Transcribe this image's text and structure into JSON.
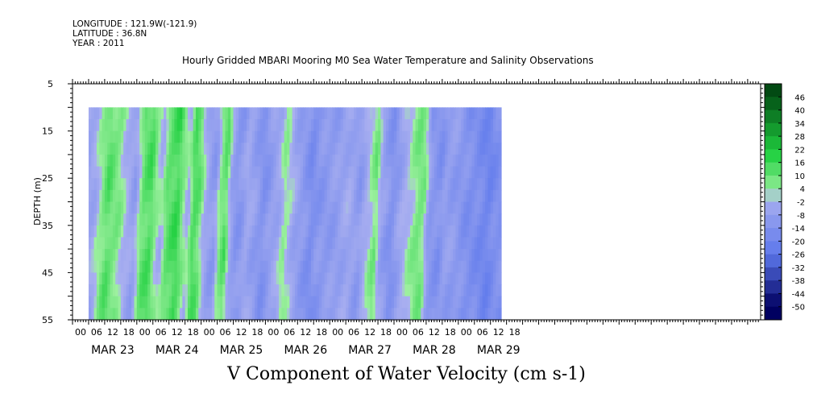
{
  "header": {
    "longitude": "LONGITUDE : 121.9W(-121.9)",
    "latitude": "LATITUDE : 36.8N",
    "year": "YEAR : 2011"
  },
  "chart_data": {
    "type": "heatmap",
    "title": "Hourly Gridded MBARI Mooring M0 Sea Water Temperature and Salinity Observations",
    "xlabel": "V Component of Water Velocity (cm s-1)",
    "ylabel": "DEPTH (m)",
    "ylim": [
      5,
      55
    ],
    "y_ticks": [
      5,
      15,
      25,
      35,
      45,
      55
    ],
    "x_hour_ticks": [
      "00",
      "06",
      "12",
      "18",
      "00",
      "06",
      "12",
      "18",
      "00",
      "06",
      "12",
      "18",
      "00",
      "06",
      "12",
      "18",
      "00",
      "06",
      "12",
      "18",
      "00",
      "06",
      "12",
      "18",
      "00",
      "06",
      "12",
      "18"
    ],
    "x_day_labels": [
      "MAR 23",
      "MAR 24",
      "MAR 25",
      "MAR 26",
      "MAR 27",
      "MAR 28",
      "MAR 29"
    ],
    "data_time_range_hours": [
      6,
      160
    ],
    "data_depth_range_m": [
      10,
      55
    ],
    "colorbar": {
      "levels": [
        46,
        40,
        34,
        28,
        22,
        16,
        10,
        4,
        -2,
        -8,
        -14,
        -20,
        -26,
        -32,
        -38,
        -44,
        -50
      ],
      "max": 50,
      "min": -50
    },
    "value_profile": {
      "time_hours": [
        6,
        9,
        12,
        14,
        16,
        18,
        20,
        24,
        27,
        30,
        32,
        34,
        36,
        40,
        42,
        44,
        46,
        48,
        50,
        52,
        54,
        56,
        58,
        60,
        62,
        64,
        66,
        70,
        72,
        75,
        78,
        80,
        84,
        88,
        90,
        92,
        96,
        100,
        104,
        108,
        112,
        114,
        116,
        120,
        124,
        128,
        130,
        132,
        134,
        138,
        140,
        144,
        148,
        152,
        154,
        156,
        158,
        160
      ],
      "v_cm_s": [
        -6,
        -4,
        6,
        12,
        8,
        6,
        0,
        -8,
        10,
        14,
        4,
        -2,
        10,
        16,
        6,
        -2,
        14,
        10,
        -2,
        -8,
        -10,
        6,
        12,
        -6,
        -12,
        -10,
        -4,
        -10,
        -14,
        -8,
        -4,
        4,
        -6,
        -12,
        -16,
        -12,
        -10,
        -8,
        -4,
        -10,
        2,
        8,
        -6,
        -14,
        -4,
        4,
        8,
        6,
        -10,
        -14,
        -8,
        -10,
        -14,
        -16,
        -18,
        -20,
        -16,
        -14
      ]
    },
    "colors": {
      "zero": "#aab0f0",
      "neg_mid": "#5d78ec",
      "neg_max": "#000060",
      "pos_light": "#9ef0a0",
      "pos_mid": "#20d040",
      "pos_max": "#004010"
    }
  }
}
